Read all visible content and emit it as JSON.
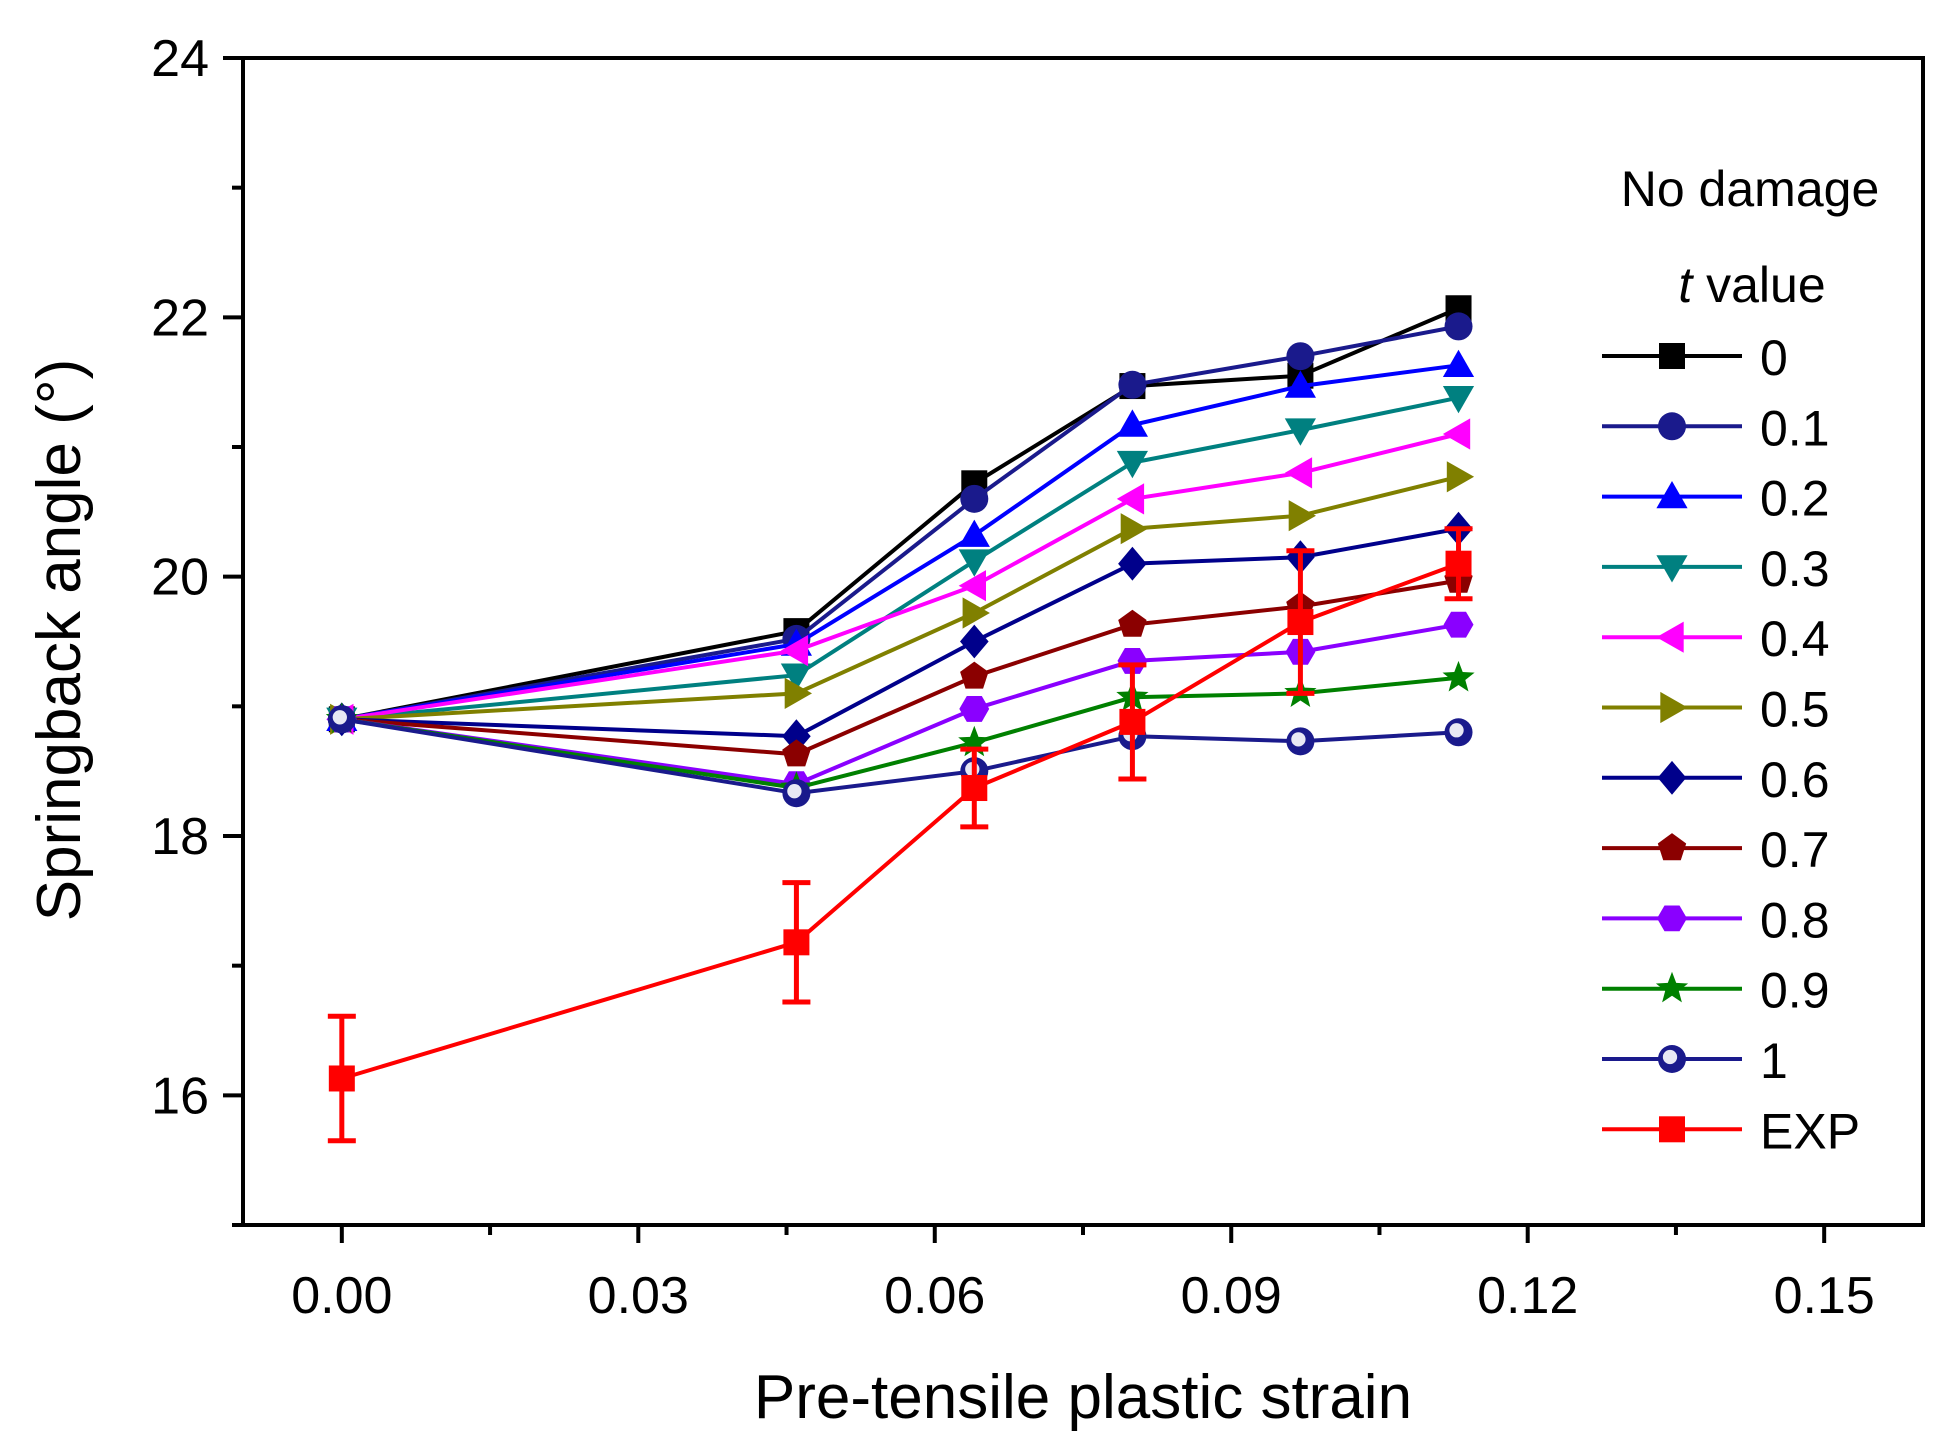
{
  "chart_data": {
    "type": "line",
    "title": "",
    "xlabel": "Pre-tensile plastic strain",
    "ylabel": "Springback angle (°)",
    "xlim": [
      -0.01,
      0.16
    ],
    "ylim": [
      15,
      24
    ],
    "xticks": [
      0.0,
      0.03,
      0.06,
      0.09,
      0.12,
      0.15
    ],
    "xtick_labels": [
      "0.00",
      "0.03",
      "0.06",
      "0.09",
      "0.12",
      "0.15"
    ],
    "yticks": [
      16,
      18,
      20,
      22,
      24
    ],
    "ytick_labels": [
      "16",
      "18",
      "20",
      "22",
      "24"
    ],
    "x": [
      0.0,
      0.046,
      0.064,
      0.08,
      0.097,
      0.113
    ],
    "legend": {
      "position": "right",
      "header": "No damage",
      "subheader_italic": "t",
      "subheader_rest": " value"
    },
    "series": [
      {
        "name": "0",
        "color": "#000000",
        "marker": "square",
        "values": [
          18.9,
          19.58,
          20.72,
          21.47,
          21.55,
          22.07
        ]
      },
      {
        "name": "0.1",
        "color": "#1a1a8c",
        "marker": "circle",
        "values": [
          18.9,
          19.52,
          20.6,
          21.48,
          21.7,
          21.93
        ]
      },
      {
        "name": "0.2",
        "color": "#0000ff",
        "marker": "triangle-up",
        "values": [
          18.9,
          19.48,
          20.32,
          21.17,
          21.47,
          21.63
        ]
      },
      {
        "name": "0.3",
        "color": "#008080",
        "marker": "triangle-down",
        "values": [
          18.9,
          19.24,
          20.12,
          20.88,
          21.13,
          21.38
        ]
      },
      {
        "name": "0.4",
        "color": "#ff00ff",
        "marker": "triangle-left",
        "values": [
          18.9,
          19.43,
          19.93,
          20.6,
          20.8,
          21.1
        ]
      },
      {
        "name": "0.5",
        "color": "#808000",
        "marker": "triangle-right",
        "values": [
          18.9,
          19.1,
          19.72,
          20.37,
          20.47,
          20.77
        ]
      },
      {
        "name": "0.6",
        "color": "#00008b",
        "marker": "diamond",
        "values": [
          18.9,
          18.77,
          19.5,
          20.1,
          20.15,
          20.37
        ]
      },
      {
        "name": "0.7",
        "color": "#8b0000",
        "marker": "pentagon",
        "values": [
          18.9,
          18.63,
          19.23,
          19.63,
          19.77,
          19.97
        ]
      },
      {
        "name": "0.8",
        "color": "#8a00ff",
        "marker": "hexagon",
        "values": [
          18.9,
          18.4,
          18.98,
          19.35,
          19.42,
          19.63
        ]
      },
      {
        "name": "0.9",
        "color": "#008000",
        "marker": "star",
        "values": [
          18.9,
          18.37,
          18.72,
          19.07,
          19.1,
          19.22
        ]
      },
      {
        "name": "1",
        "color": "#1a1a8c",
        "marker": "ball",
        "values": [
          18.9,
          18.33,
          18.5,
          18.77,
          18.73,
          18.8
        ]
      },
      {
        "name": "EXP",
        "color": "#ff0000",
        "marker": "square",
        "x": [
          0.0,
          0.046,
          0.064,
          0.08,
          0.097,
          0.113
        ],
        "values": [
          16.13,
          17.18,
          18.37,
          18.88,
          19.65,
          20.1
        ],
        "errors": [
          0.48,
          0.46,
          0.3,
          0.44,
          0.55,
          0.27
        ]
      }
    ]
  }
}
